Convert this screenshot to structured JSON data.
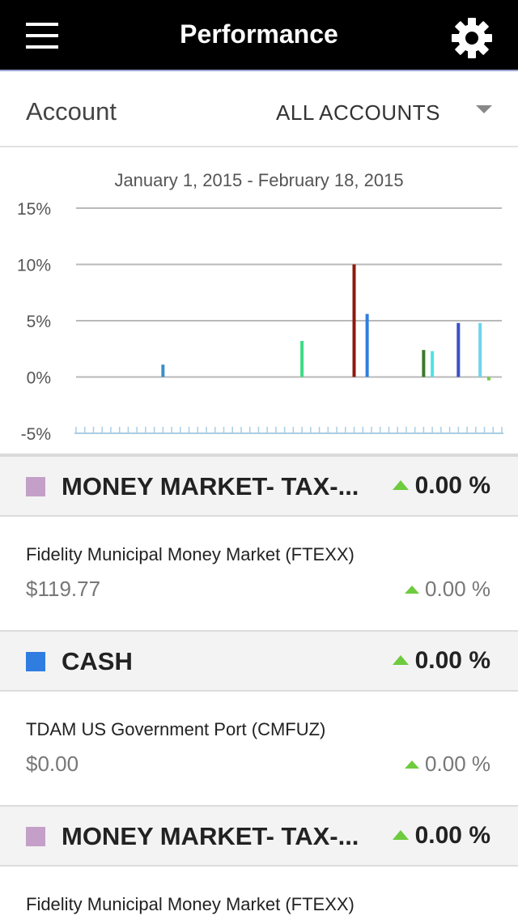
{
  "header": {
    "title": "Performance",
    "menu_icon": "hamburger-menu-icon",
    "settings_icon": "gear-icon"
  },
  "account": {
    "label": "Account",
    "selected": "ALL ACCOUNTS"
  },
  "chart_data": {
    "type": "bar",
    "title": "January 1, 2015 - February 18, 2015",
    "xlabel": "",
    "ylabel": "",
    "y_ticks": [
      "15%",
      "10%",
      "5%",
      "0%",
      "-5%"
    ],
    "ylim": [
      -5,
      15
    ],
    "grid": true,
    "bars": [
      {
        "day": 10,
        "value": 1.1,
        "color": "#3a8fc8"
      },
      {
        "day": 26,
        "value": 3.2,
        "color": "#3ddc84"
      },
      {
        "day": 32,
        "value": 10.0,
        "color": "#8b1a0e"
      },
      {
        "day": 33.5,
        "value": 5.6,
        "color": "#2f7de1"
      },
      {
        "day": 40,
        "value": 2.4,
        "color": "#3a7a2a"
      },
      {
        "day": 41,
        "value": 2.3,
        "color": "#4fe3e3"
      },
      {
        "day": 44,
        "value": 4.8,
        "color": "#3a4fc8"
      },
      {
        "day": 46.5,
        "value": 4.8,
        "color": "#6ed4ee"
      },
      {
        "day": 47.5,
        "value": -0.3,
        "color": "#6ecb3e"
      }
    ]
  },
  "groups": [
    {
      "name": "MONEY MARKET- TAX-...",
      "color": "#c4a0c8",
      "pct": "0.00 %",
      "holding": {
        "name": "Fidelity Municipal Money Market (FTEXX)",
        "value": "$119.77",
        "pct": "0.00 %"
      }
    },
    {
      "name": "CASH",
      "color": "#2f7de1",
      "pct": "0.00 %",
      "holding": {
        "name": "TDAM US Government Port (CMFUZ)",
        "value": "$0.00",
        "pct": "0.00 %"
      }
    },
    {
      "name": "MONEY MARKET- TAX-...",
      "color": "#c4a0c8",
      "pct": "0.00 %",
      "holding": {
        "name": "Fidelity Municipal Money Market (FTEXX)",
        "value": "",
        "pct": ""
      }
    }
  ]
}
